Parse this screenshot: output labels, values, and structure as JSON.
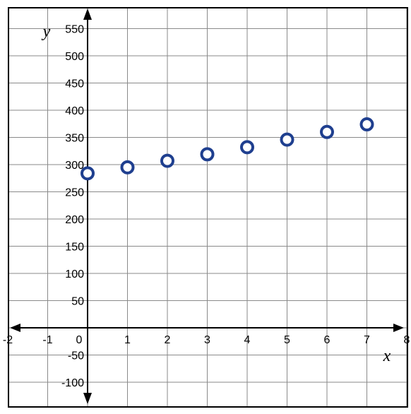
{
  "chart_data": {
    "type": "scatter",
    "xlabel": "x",
    "ylabel": "y",
    "xlim": [
      -2,
      8
    ],
    "ylim": [
      -100,
      550
    ],
    "x_ticks": [
      "-2",
      "-1",
      "0",
      "1",
      "2",
      "3",
      "4",
      "5",
      "6",
      "7",
      "8"
    ],
    "y_ticks": [
      "-100",
      "-50",
      "50",
      "100",
      "150",
      "200",
      "250",
      "300",
      "350",
      "400",
      "450",
      "500",
      "550"
    ],
    "grid": true,
    "marker_color": "#1f3f8f",
    "points": [
      {
        "x": 0,
        "y": 284
      },
      {
        "x": 1,
        "y": 295
      },
      {
        "x": 2,
        "y": 307
      },
      {
        "x": 3,
        "y": 319
      },
      {
        "x": 4,
        "y": 332
      },
      {
        "x": 5,
        "y": 346
      },
      {
        "x": 6,
        "y": 360
      },
      {
        "x": 7,
        "y": 374
      }
    ]
  }
}
